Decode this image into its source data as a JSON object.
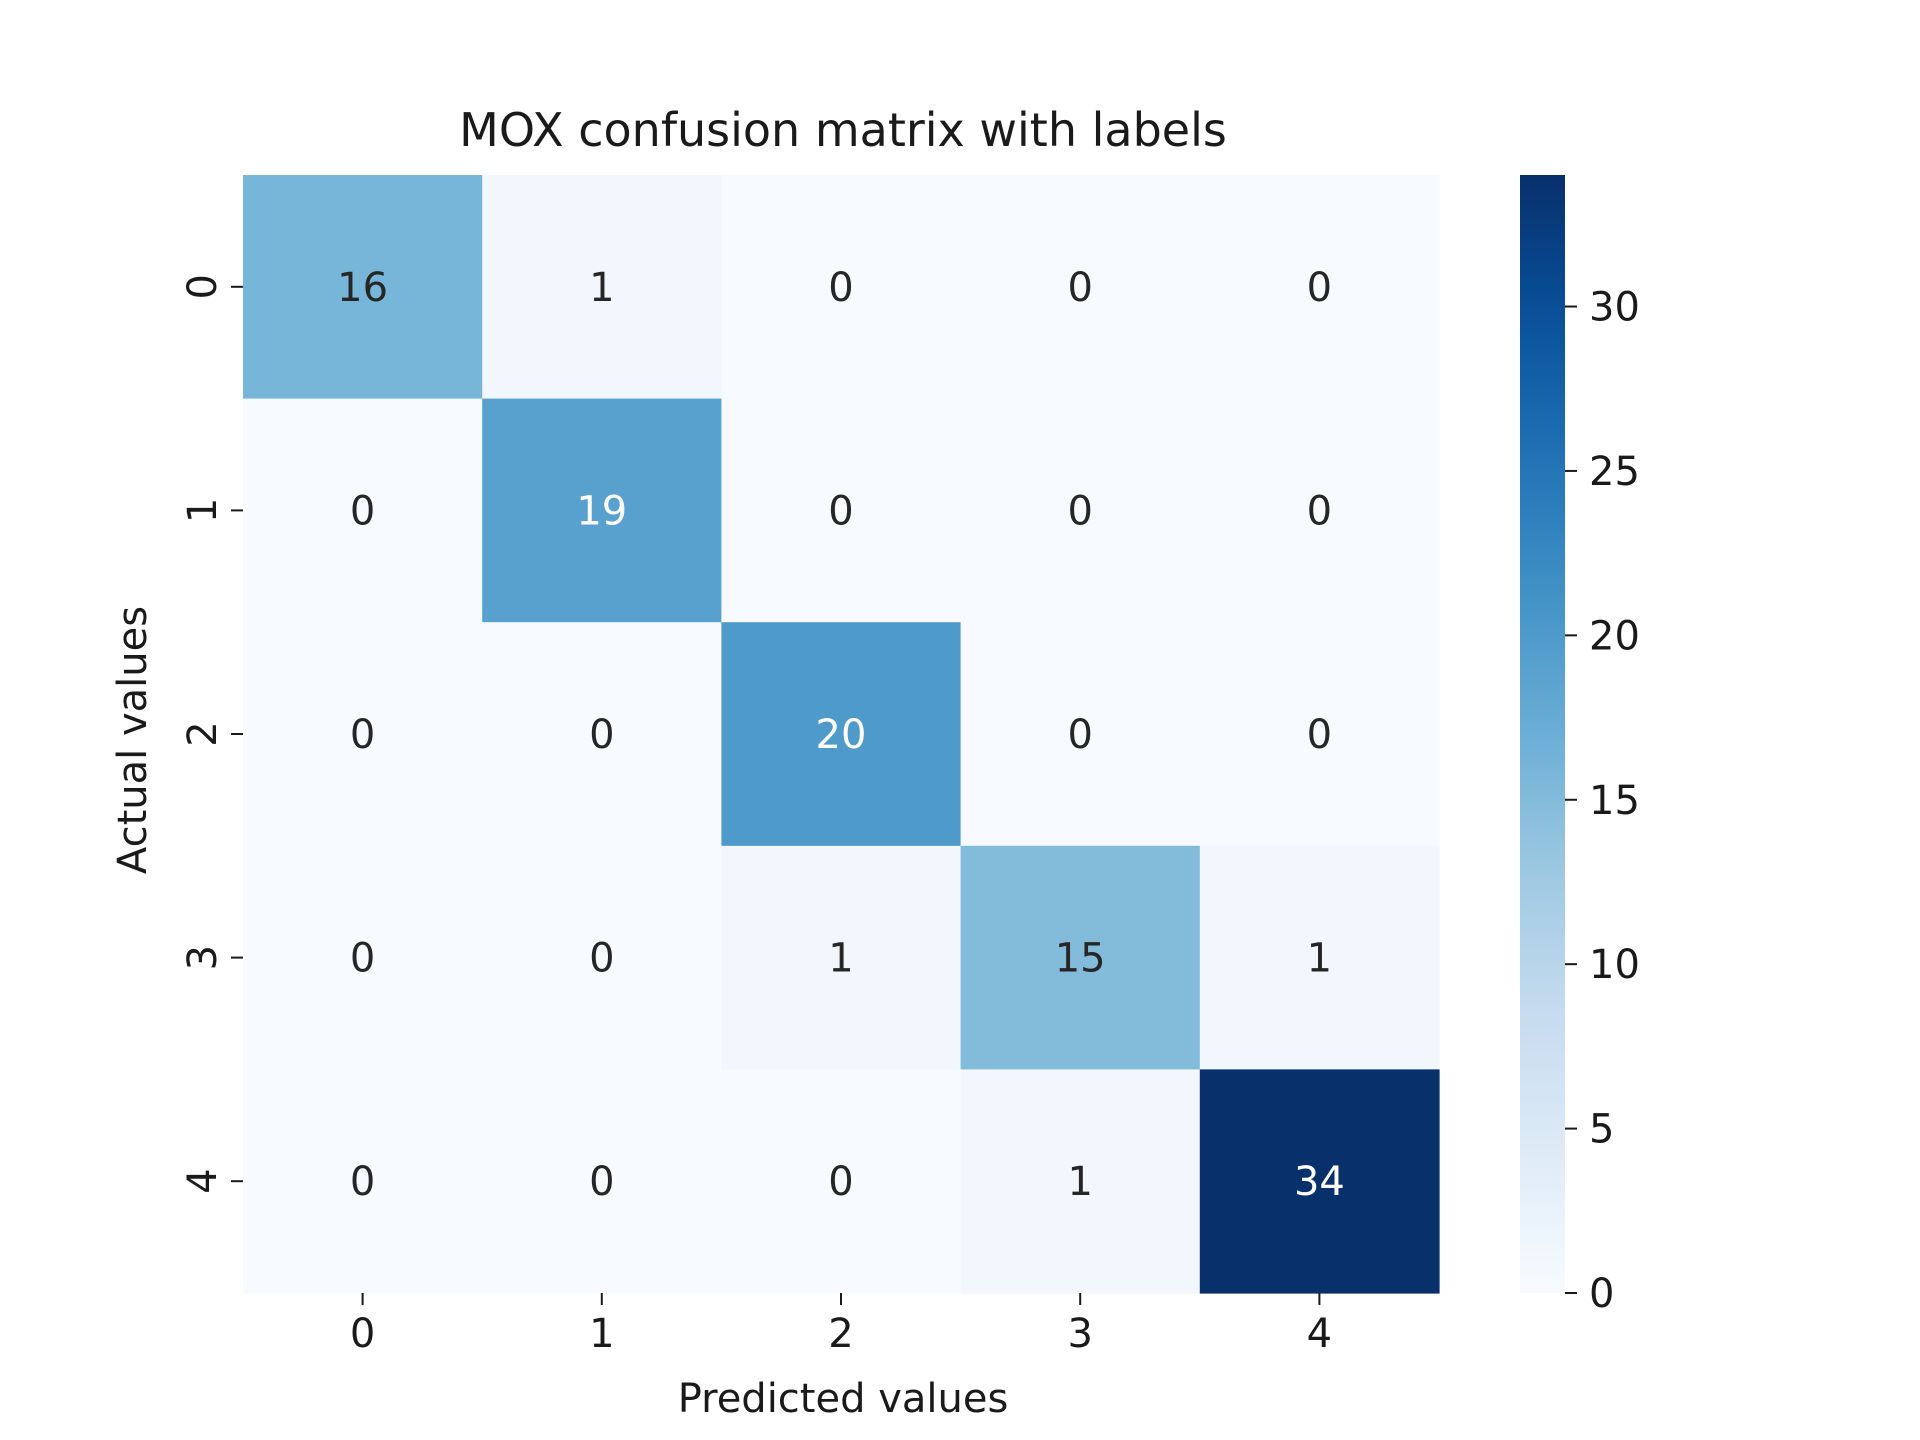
{
  "chart_data": {
    "type": "heatmap",
    "title": "MOX confusion matrix with labels",
    "xlabel": "Predicted values",
    "ylabel": "Actual values",
    "x_categories": [
      "0",
      "1",
      "2",
      "3",
      "4"
    ],
    "y_categories": [
      "0",
      "1",
      "2",
      "3",
      "4"
    ],
    "matrix": [
      [
        16,
        1,
        0,
        0,
        0
      ],
      [
        0,
        19,
        0,
        0,
        0
      ],
      [
        0,
        0,
        20,
        0,
        0
      ],
      [
        0,
        0,
        1,
        15,
        1
      ],
      [
        0,
        0,
        0,
        1,
        34
      ]
    ],
    "colormap": "Blues",
    "colorbar": {
      "range": [
        0,
        34
      ],
      "ticks": [
        0,
        5,
        10,
        15,
        20,
        25,
        30
      ]
    }
  }
}
